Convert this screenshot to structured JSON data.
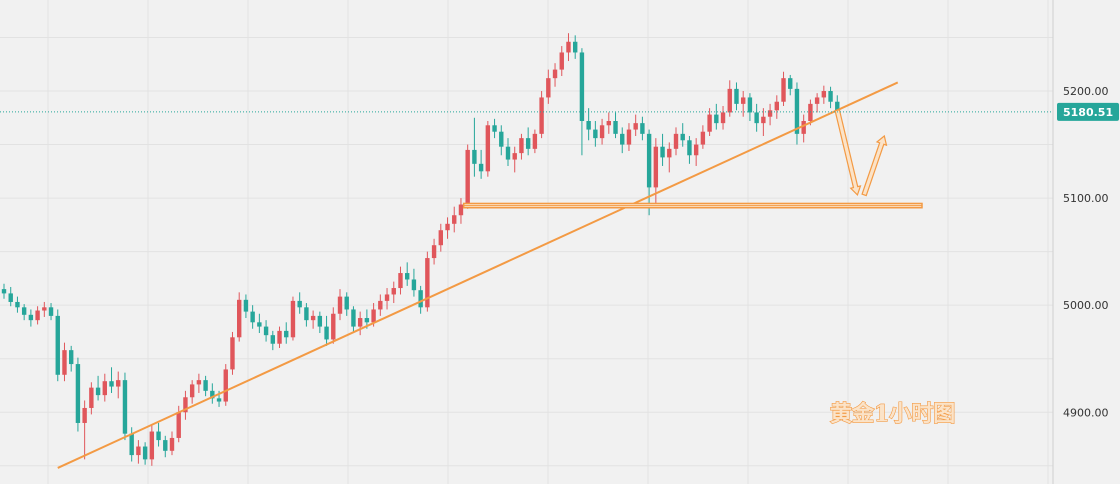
{
  "chart_data": {
    "type": "candlestick",
    "title": "黄金1小时图",
    "y_ticks": [
      "5200.00",
      "5100.00",
      "5000.00",
      "4900.00"
    ],
    "y_tick_values": [
      5200,
      5100,
      5000,
      4900
    ],
    "ylim": [
      4833,
      5285
    ],
    "last_price": "5180.51",
    "last_price_value": 5180.51,
    "grid": true,
    "colors": {
      "up": "#e0565b",
      "down": "#26a69a",
      "annotation": "#f39a44",
      "price_line": "#26a69a"
    },
    "candles": [
      [
        5015,
        5020,
        5006,
        5011
      ],
      [
        5011,
        5017,
        4999,
        5003
      ],
      [
        5003,
        5008,
        4993,
        4998
      ],
      [
        4998,
        5001,
        4986,
        4991
      ],
      [
        4991,
        4996,
        4980,
        4986
      ],
      [
        4986,
        4999,
        4982,
        4995
      ],
      [
        4995,
        5003,
        4989,
        4998
      ],
      [
        4998,
        5002,
        4986,
        4990
      ],
      [
        4990,
        4996,
        4929,
        4935
      ],
      [
        4935,
        4965,
        4929,
        4958
      ],
      [
        4958,
        4962,
        4938,
        4945
      ],
      [
        4945,
        4951,
        4882,
        4890
      ],
      [
        4890,
        4911,
        4856,
        4904
      ],
      [
        4904,
        4928,
        4898,
        4923
      ],
      [
        4923,
        4934,
        4911,
        4916
      ],
      [
        4916,
        4936,
        4910,
        4929
      ],
      [
        4929,
        4942,
        4918,
        4924
      ],
      [
        4924,
        4938,
        4913,
        4930
      ],
      [
        4930,
        4937,
        4874,
        4880
      ],
      [
        4880,
        4886,
        4854,
        4860
      ],
      [
        4860,
        4874,
        4852,
        4868
      ],
      [
        4868,
        4872,
        4851,
        4856
      ],
      [
        4856,
        4888,
        4850,
        4882
      ],
      [
        4882,
        4890,
        4868,
        4874
      ],
      [
        4874,
        4878,
        4858,
        4864
      ],
      [
        4864,
        4882,
        4860,
        4876
      ],
      [
        4876,
        4906,
        4872,
        4900
      ],
      [
        4900,
        4920,
        4893,
        4914
      ],
      [
        4914,
        4930,
        4908,
        4926
      ],
      [
        4926,
        4936,
        4918,
        4930
      ],
      [
        4930,
        4934,
        4915,
        4920
      ],
      [
        4920,
        4927,
        4908,
        4913
      ],
      [
        4913,
        4920,
        4905,
        4910
      ],
      [
        4910,
        4945,
        4906,
        4940
      ],
      [
        4940,
        4975,
        4935,
        4970
      ],
      [
        4970,
        5012,
        4966,
        5005
      ],
      [
        5005,
        5010,
        4988,
        4994
      ],
      [
        4994,
        5000,
        4978,
        4984
      ],
      [
        4984,
        4992,
        4974,
        4980
      ],
      [
        4980,
        4986,
        4966,
        4972
      ],
      [
        4972,
        4976,
        4958,
        4964
      ],
      [
        4964,
        4980,
        4960,
        4976
      ],
      [
        4976,
        4984,
        4964,
        4970
      ],
      [
        4970,
        5008,
        4967,
        5004
      ],
      [
        5004,
        5012,
        4992,
        4998
      ],
      [
        4998,
        5002,
        4980,
        4986
      ],
      [
        4986,
        4995,
        4978,
        4990
      ],
      [
        4990,
        4994,
        4974,
        4980
      ],
      [
        4980,
        4990,
        4962,
        4968
      ],
      [
        4968,
        4998,
        4964,
        4992
      ],
      [
        4992,
        5015,
        4986,
        5008
      ],
      [
        5008,
        5012,
        4990,
        4996
      ],
      [
        4996,
        4999,
        4974,
        4980
      ],
      [
        4980,
        4994,
        4972,
        4988
      ],
      [
        4988,
        4996,
        4978,
        4984
      ],
      [
        4984,
        5002,
        4980,
        4996
      ],
      [
        4996,
        5010,
        4990,
        5004
      ],
      [
        5004,
        5016,
        4996,
        5010
      ],
      [
        5010,
        5022,
        5002,
        5016
      ],
      [
        5016,
        5036,
        5010,
        5030
      ],
      [
        5030,
        5040,
        5018,
        5024
      ],
      [
        5024,
        5034,
        5008,
        5014
      ],
      [
        5014,
        5018,
        4992,
        4998
      ],
      [
        4998,
        5050,
        4994,
        5044
      ],
      [
        5044,
        5062,
        5038,
        5056
      ],
      [
        5056,
        5076,
        5050,
        5070
      ],
      [
        5070,
        5082,
        5062,
        5076
      ],
      [
        5076,
        5092,
        5068,
        5084
      ],
      [
        5084,
        5100,
        5076,
        5094
      ],
      [
        5094,
        5150,
        5090,
        5145
      ],
      [
        5145,
        5175,
        5120,
        5132
      ],
      [
        5132,
        5145,
        5118,
        5125
      ],
      [
        5125,
        5172,
        5120,
        5168
      ],
      [
        5168,
        5174,
        5156,
        5162
      ],
      [
        5162,
        5168,
        5140,
        5148
      ],
      [
        5148,
        5156,
        5130,
        5136
      ],
      [
        5136,
        5148,
        5124,
        5142
      ],
      [
        5142,
        5160,
        5136,
        5156
      ],
      [
        5156,
        5166,
        5140,
        5146
      ],
      [
        5146,
        5164,
        5142,
        5160
      ],
      [
        5160,
        5200,
        5156,
        5194
      ],
      [
        5194,
        5220,
        5188,
        5212
      ],
      [
        5212,
        5226,
        5204,
        5220
      ],
      [
        5220,
        5242,
        5214,
        5236
      ],
      [
        5236,
        5254,
        5228,
        5246
      ],
      [
        5246,
        5252,
        5230,
        5236
      ],
      [
        5236,
        5240,
        5140,
        5172
      ],
      [
        5172,
        5184,
        5154,
        5164
      ],
      [
        5164,
        5172,
        5148,
        5156
      ],
      [
        5156,
        5174,
        5150,
        5168
      ],
      [
        5168,
        5180,
        5160,
        5172
      ],
      [
        5172,
        5180,
        5156,
        5160
      ],
      [
        5160,
        5166,
        5142,
        5150
      ],
      [
        5150,
        5170,
        5144,
        5164
      ],
      [
        5164,
        5178,
        5158,
        5170
      ],
      [
        5170,
        5176,
        5154,
        5160
      ],
      [
        5160,
        5164,
        5084,
        5110
      ],
      [
        5110,
        5156,
        5094,
        5148
      ],
      [
        5148,
        5160,
        5130,
        5138
      ],
      [
        5138,
        5152,
        5124,
        5146
      ],
      [
        5146,
        5166,
        5140,
        5160
      ],
      [
        5160,
        5170,
        5148,
        5154
      ],
      [
        5154,
        5158,
        5132,
        5140
      ],
      [
        5140,
        5156,
        5130,
        5150
      ],
      [
        5150,
        5168,
        5146,
        5162
      ],
      [
        5162,
        5184,
        5158,
        5178
      ],
      [
        5178,
        5188,
        5164,
        5170
      ],
      [
        5170,
        5186,
        5164,
        5180
      ],
      [
        5180,
        5210,
        5176,
        5202
      ],
      [
        5202,
        5208,
        5182,
        5188
      ],
      [
        5188,
        5200,
        5176,
        5194
      ],
      [
        5194,
        5198,
        5172,
        5180
      ],
      [
        5180,
        5188,
        5162,
        5170
      ],
      [
        5170,
        5184,
        5158,
        5176
      ],
      [
        5176,
        5188,
        5168,
        5182
      ],
      [
        5182,
        5196,
        5174,
        5190
      ],
      [
        5190,
        5218,
        5186,
        5212
      ],
      [
        5212,
        5215,
        5196,
        5202
      ],
      [
        5202,
        5208,
        5150,
        5160
      ],
      [
        5160,
        5178,
        5152,
        5172
      ],
      [
        5172,
        5192,
        5168,
        5188
      ],
      [
        5188,
        5198,
        5180,
        5194
      ],
      [
        5194,
        5205,
        5188,
        5200
      ],
      [
        5200,
        5204,
        5184,
        5190
      ],
      [
        5190,
        5196,
        5180,
        5181
      ]
    ]
  },
  "annotations": {
    "trendline": [
      [
        8,
        4848
      ],
      [
        133,
        5208
      ]
    ],
    "support_zone": [
      69,
      5095,
      5091
    ],
    "arrow_down": [
      [
        124,
        5182
      ],
      [
        127,
        5103
      ]
    ],
    "arrow_up": [
      [
        128,
        5103
      ],
      [
        131,
        5158
      ]
    ]
  }
}
